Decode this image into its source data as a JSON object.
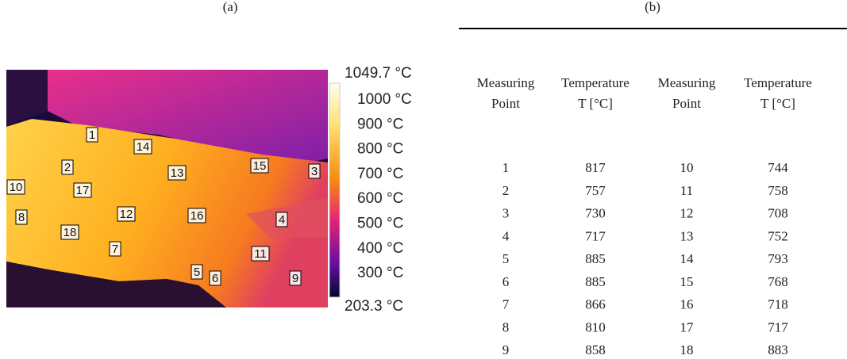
{
  "panel_a": {
    "label": "(a)",
    "colorbar": {
      "max": "1049.7 °C",
      "ticks": [
        "1000 °C",
        "900 °C",
        "800 °C",
        "700 °C",
        "600 °C",
        "500 °C",
        "400 °C",
        "300 °C"
      ],
      "min": "203.3 °C"
    },
    "points": [
      "1",
      "2",
      "3",
      "4",
      "5",
      "6",
      "7",
      "8",
      "9",
      "10",
      "11",
      "12",
      "13",
      "14",
      "15",
      "16",
      "17",
      "18"
    ]
  },
  "panel_b": {
    "label": "(b)",
    "table": {
      "header": [
        "Measuring Point",
        "Temperature T [°C]",
        "Measuring Point",
        "Temperature T [°C]"
      ],
      "rows": [
        [
          1,
          817,
          10,
          744
        ],
        [
          2,
          757,
          11,
          758
        ],
        [
          3,
          730,
          12,
          708
        ],
        [
          4,
          717,
          13,
          752
        ],
        [
          5,
          885,
          14,
          793
        ],
        [
          6,
          885,
          15,
          768
        ],
        [
          7,
          866,
          16,
          718
        ],
        [
          8,
          810,
          17,
          717
        ],
        [
          9,
          858,
          18,
          883
        ]
      ]
    }
  }
}
